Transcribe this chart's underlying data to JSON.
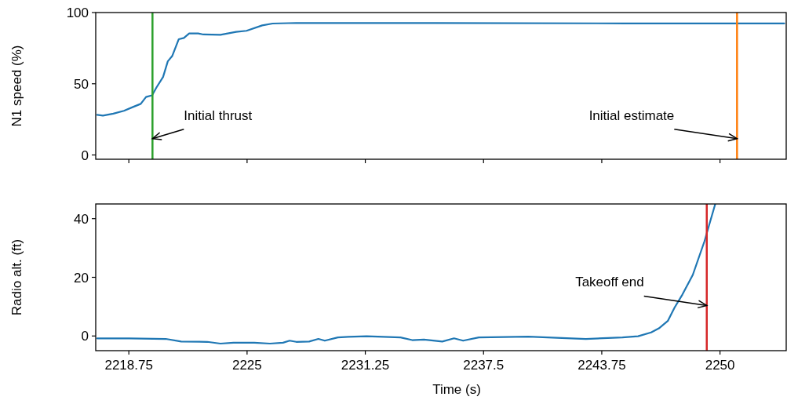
{
  "chart_data": [
    {
      "type": "line",
      "ylabel": "N1 speed (%)",
      "xlim": [
        2217,
        2253.5
      ],
      "ylim": [
        -3,
        100
      ],
      "xticks": [
        2218.75,
        2225,
        2231.25,
        2237.5,
        2243.75,
        2250
      ],
      "yticks": [
        0,
        50,
        100
      ],
      "tick_labels": "y",
      "series": [
        {
          "color": "#1f77b4",
          "x": [
            2217.08,
            2217.38,
            2217.93,
            2218.49,
            2218.97,
            2219.38,
            2219.66,
            2219.98,
            2220.21,
            2220.56,
            2220.81,
            2221.04,
            2221.39,
            2221.66,
            2221.94,
            2222.42,
            2222.69,
            2223.59,
            2224.42,
            2224.97,
            2225.8,
            2226.35,
            2227.6,
            2235,
            2245,
            2253.4
          ],
          "values": [
            28.2,
            27.6,
            29,
            31,
            33.7,
            35.9,
            40.7,
            41.9,
            47.4,
            54.8,
            65.8,
            69.4,
            81.3,
            82.2,
            85.3,
            85.3,
            84.6,
            84.4,
            86.4,
            87.2,
            91,
            92.3,
            92.7,
            92.6,
            92.4,
            92.4
          ]
        }
      ],
      "ref_lines": [
        {
          "axis": "x",
          "value": 2220,
          "color": "#2ca02c"
        },
        {
          "axis": "x",
          "value": 2250.9,
          "color": "#ff7f0e"
        }
      ],
      "annotations": [
        {
          "text": "Initial thrust",
          "x": 2220,
          "y": 11.5
        },
        {
          "text": "Initial estimate",
          "x": 2250.9,
          "y": 11.5
        }
      ]
    },
    {
      "type": "line",
      "xlabel": "Time (s)",
      "ylabel": "Radio alt. (ft)",
      "xlim": [
        2217,
        2253.5
      ],
      "ylim": [
        -5,
        45
      ],
      "xticks": [
        2218.75,
        2225,
        2231.25,
        2237.5,
        2243.75,
        2250
      ],
      "yticks": [
        0,
        20,
        40
      ],
      "series": [
        {
          "color": "#1f77b4",
          "x": [
            2217.08,
            2218.76,
            2220.7,
            2221.52,
            2222.9,
            2223.59,
            2224.28,
            2225.38,
            2226.21,
            2226.9,
            2227.25,
            2227.6,
            2228.28,
            2228.77,
            2229.11,
            2229.8,
            2230.35,
            2231.32,
            2233.11,
            2233.73,
            2234.35,
            2235.32,
            2235.94,
            2236.42,
            2237.25,
            2239.87,
            2242.91,
            2244.84,
            2245.67,
            2246.36,
            2246.77,
            2247.25,
            2247.6,
            2248.01,
            2248.56,
            2249.18,
            2249.46,
            2249.74
          ],
          "values": [
            -0.8,
            -0.8,
            -1,
            -1.9,
            -2,
            -2.6,
            -2.3,
            -2.3,
            -2.6,
            -2.3,
            -1.6,
            -2,
            -1.9,
            -1,
            -1.6,
            -0.5,
            -0.3,
            -0.1,
            -0.5,
            -1.4,
            -1.2,
            -1.9,
            -0.8,
            -1.6,
            -0.5,
            -0.2,
            -1,
            -0.5,
            -0.1,
            1.2,
            2.6,
            5.2,
            9.7,
            14.1,
            20.8,
            32.3,
            38.6,
            44.8
          ]
        }
      ],
      "ref_lines": [
        {
          "axis": "x",
          "value": 2249.3,
          "color": "#d62728"
        }
      ],
      "annotations": [
        {
          "text": "Takeoff end",
          "x": 2249.3,
          "y": 10.4
        }
      ]
    }
  ]
}
